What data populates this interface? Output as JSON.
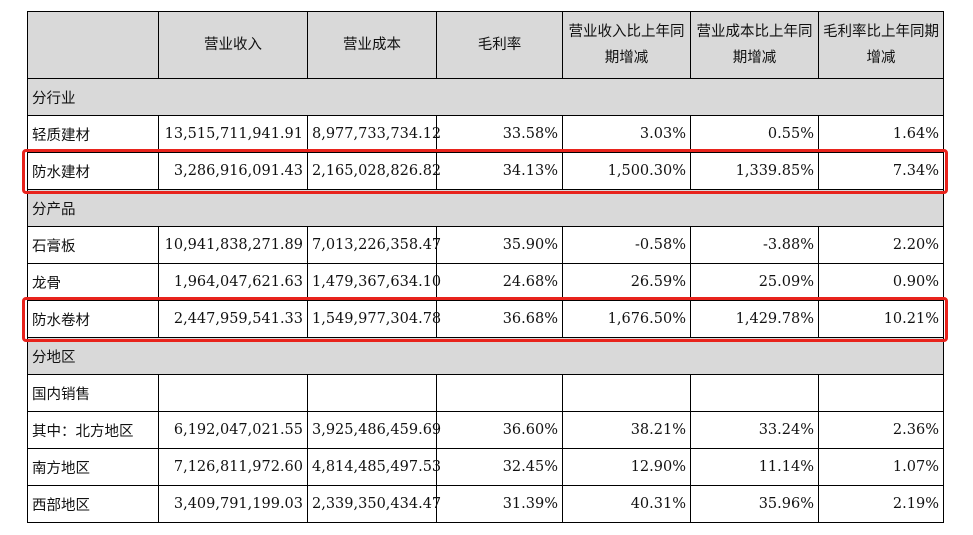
{
  "corner_text": "",
  "table": {
    "headers": [
      "",
      "营业收入",
      "营业成本",
      "毛利率",
      "营业收入比上年同期增减",
      "营业成本比上年同期增减",
      "毛利率比上年同期增减"
    ],
    "sections": [
      {
        "label": "分行业",
        "rows": [
          {
            "label": "轻质建材",
            "values": [
              "13,515,711,941.91",
              "8,977,733,734.12",
              "33.58%",
              "3.03%",
              "0.55%",
              "1.64%"
            ],
            "highlighted": false
          },
          {
            "label": "防水建材",
            "values": [
              "3,286,916,091.43",
              "2,165,028,826.82",
              "34.13%",
              "1,500.30%",
              "1,339.85%",
              "7.34%"
            ],
            "highlighted": true
          }
        ]
      },
      {
        "label": "分产品",
        "rows": [
          {
            "label": "石膏板",
            "values": [
              "10,941,838,271.89",
              "7,013,226,358.47",
              "35.90%",
              "-0.58%",
              "-3.88%",
              "2.20%"
            ],
            "highlighted": false
          },
          {
            "label": "龙骨",
            "values": [
              "1,964,047,621.63",
              "1,479,367,634.10",
              "24.68%",
              "26.59%",
              "25.09%",
              "0.90%"
            ],
            "highlighted": false
          },
          {
            "label": "防水卷材",
            "values": [
              "2,447,959,541.33",
              "1,549,977,304.78",
              "36.68%",
              "1,676.50%",
              "1,429.78%",
              "10.21%"
            ],
            "highlighted": true
          }
        ]
      },
      {
        "label": "分地区",
        "rows": [
          {
            "label": "国内销售",
            "values": [
              "",
              "",
              "",
              "",
              "",
              ""
            ],
            "highlighted": false
          },
          {
            "label": "其中：北方地区",
            "values": [
              "6,192,047,021.55",
              "3,925,486,459.69",
              "36.60%",
              "38.21%",
              "33.24%",
              "2.36%"
            ],
            "highlighted": false
          },
          {
            "label": "南方地区",
            "values": [
              "7,126,811,972.60",
              "4,814,485,497.53",
              "32.45%",
              "12.90%",
              "11.14%",
              "1.07%"
            ],
            "highlighted": false
          },
          {
            "label": "西部地区",
            "values": [
              "3,409,791,199.03",
              "2,339,350,434.47",
              "31.39%",
              "40.31%",
              "35.96%",
              "2.19%"
            ],
            "highlighted": false
          }
        ]
      }
    ]
  },
  "colors": {
    "highlight_border": "#e8231c",
    "header_bg": "#d9d9d9",
    "grid": "#000000"
  }
}
